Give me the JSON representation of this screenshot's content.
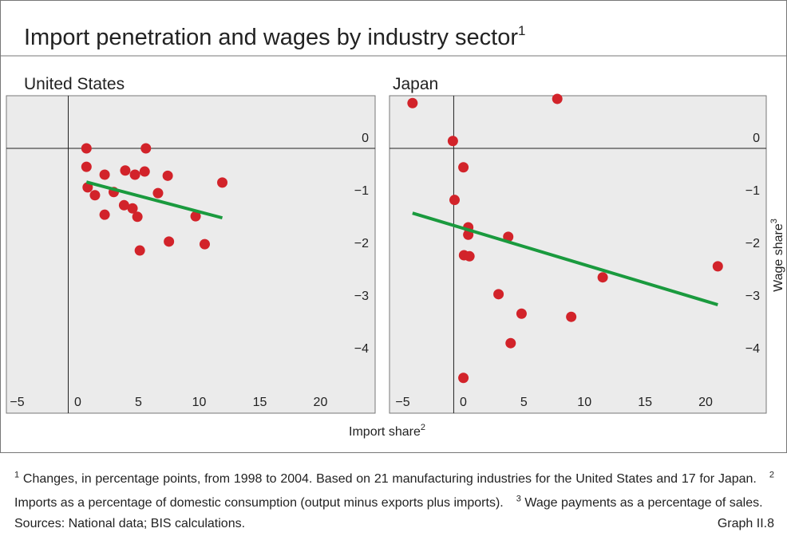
{
  "title": "Import penetration and wages by industry sector",
  "title_note": "1",
  "x_label": "Import share",
  "x_label_note": "2",
  "y_label": "Wage share",
  "y_label_note": "3",
  "footnotes": [
    {
      "mark": "1",
      "text": "Changes, in percentage points, from 1998 to 2004. Based on 21 manufacturing industries for the United States and 17 for Japan."
    },
    {
      "mark": "2",
      "text": "Imports as a percentage of domestic consumption (output minus exports plus imports)."
    },
    {
      "mark": "3",
      "text": "Wage payments as a percentage of sales."
    }
  ],
  "sources": "Sources: National data; BIS calculations.",
  "graph_label": "Graph II.8",
  "chart_data": [
    {
      "type": "scatter",
      "title": "United States",
      "xlim": [
        -5.1,
        25.3
      ],
      "ylim": [
        -5.03,
        1
      ],
      "xticks": [
        {
          "value": -5,
          "label": "−5"
        },
        0,
        5,
        10,
        15,
        20
      ],
      "yticks": [
        {
          "value": -4,
          "label": "−4"
        },
        {
          "value": -3,
          "label": "−3"
        },
        {
          "value": -2,
          "label": "−2"
        },
        {
          "value": -1,
          "label": "−1"
        },
        0
      ],
      "series": [
        {
          "color": "#d2232a",
          "x": [
            1.5,
            1.5,
            1.6,
            2.2,
            3.0,
            3.0,
            3.75,
            4.7,
            4.6,
            5.3,
            5.5,
            5.7,
            6.3,
            6.4,
            5.9,
            7.4,
            8.2,
            8.3,
            10.5,
            11.25,
            12.7
          ],
          "values": [
            0,
            -0.35,
            -0.74,
            -0.89,
            -0.5,
            -1.26,
            -0.83,
            -0.42,
            -1.08,
            -1.14,
            -0.5,
            -1.3,
            -0.44,
            0,
            -1.94,
            -0.85,
            -0.52,
            -1.77,
            -1.29,
            -1.82,
            -0.65
          ]
        }
      ],
      "trend": {
        "color": "#1a9a3e",
        "x": [
          1.5,
          12.7
        ],
        "values": [
          -0.64,
          -1.32
        ]
      }
    },
    {
      "type": "scatter",
      "title": "Japan",
      "xlim": [
        -5.3,
        25.8
      ],
      "ylim": [
        -5.03,
        1
      ],
      "xticks": [
        {
          "value": -5,
          "label": "−5"
        },
        0,
        5,
        10,
        15,
        20
      ],
      "yticks": [
        {
          "value": -4,
          "label": "−4"
        },
        {
          "value": -3,
          "label": "−3"
        },
        {
          "value": -2,
          "label": "−2"
        },
        {
          "value": -1,
          "label": "−1"
        },
        0
      ],
      "series": [
        {
          "color": "#d2232a",
          "x": [
            -3.4,
            8.55,
            -0.07,
            0.8,
            0.07,
            1.2,
            1.2,
            4.5,
            0.85,
            1.3,
            3.7,
            5.6,
            4.7,
            9.7,
            12.3,
            21.8,
            0.8
          ],
          "values": [
            0.86,
            0.94,
            0.14,
            -0.36,
            -0.98,
            -1.5,
            -1.64,
            -1.68,
            -2.03,
            -2.05,
            -2.77,
            -3.14,
            -3.7,
            -3.2,
            -2.45,
            -2.24,
            -4.36
          ]
        }
      ],
      "trend": {
        "color": "#1a9a3e",
        "x": [
          -3.4,
          21.8
        ],
        "values": [
          -1.23,
          -2.97
        ]
      }
    }
  ]
}
